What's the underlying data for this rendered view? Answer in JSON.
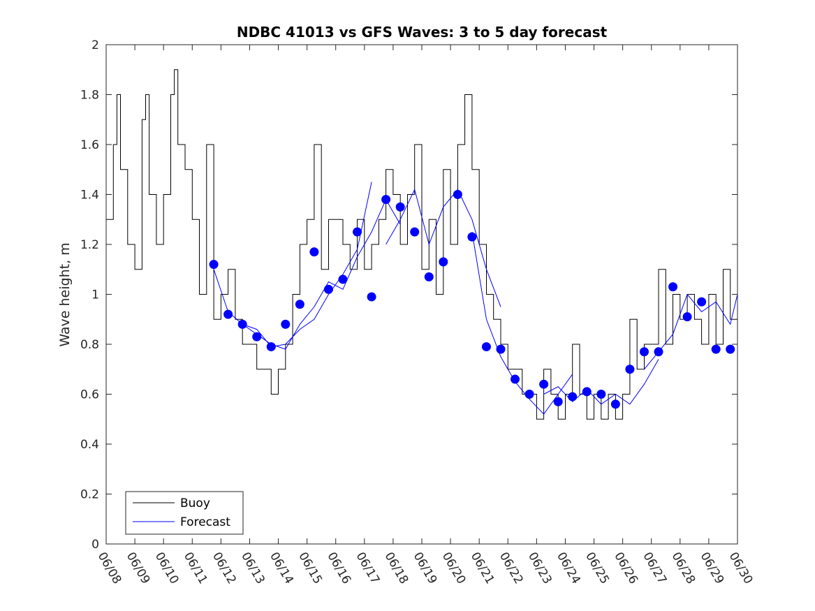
{
  "chart_data": {
    "type": "line",
    "title": "NDBC 41013 vs GFS Waves: 3 to 5 day forecast",
    "xlabel": "",
    "ylabel": "Wave height, m",
    "ylim": [
      0,
      2
    ],
    "xlim": [
      "06/08",
      "06/30"
    ],
    "grid": false,
    "legend_placement": "bottom-left",
    "x_tick_labels": [
      "06/08",
      "06/09",
      "06/10",
      "06/11",
      "06/12",
      "06/13",
      "06/14",
      "06/15",
      "06/16",
      "06/17",
      "06/18",
      "06/19",
      "06/20",
      "06/21",
      "06/22",
      "06/23",
      "06/24",
      "06/25",
      "06/26",
      "06/27",
      "06/28",
      "06/29",
      "06/30"
    ],
    "y_tick_labels": [
      "0",
      "0.2",
      "0.4",
      "0.6",
      "0.8",
      "1",
      "1.2",
      "1.4",
      "1.6",
      "1.8",
      "2"
    ],
    "series": [
      {
        "name": "Buoy",
        "color": "#000000",
        "style": "line",
        "x": [
          "06/08 00:00",
          "06/08 06:00",
          "06/08 09:00",
          "06/08 12:00",
          "06/08 18:00",
          "06/09 00:00",
          "06/09 06:00",
          "06/09 09:00",
          "06/09 12:00",
          "06/09 18:00",
          "06/10 00:00",
          "06/10 06:00",
          "06/10 09:00",
          "06/10 12:00",
          "06/10 18:00",
          "06/11 00:00",
          "06/11 06:00",
          "06/11 12:00",
          "06/11 18:00",
          "06/12 00:00",
          "06/12 06:00",
          "06/12 12:00",
          "06/12 18:00",
          "06/13 00:00",
          "06/13 06:00",
          "06/13 12:00",
          "06/13 18:00",
          "06/14 00:00",
          "06/14 06:00",
          "06/14 12:00",
          "06/14 18:00",
          "06/15 00:00",
          "06/15 06:00",
          "06/15 12:00",
          "06/15 18:00",
          "06/16 00:00",
          "06/16 06:00",
          "06/16 12:00",
          "06/16 18:00",
          "06/17 00:00",
          "06/17 06:00",
          "06/17 12:00",
          "06/17 18:00",
          "06/18 00:00",
          "06/18 06:00",
          "06/18 12:00",
          "06/18 18:00",
          "06/19 00:00",
          "06/19 06:00",
          "06/19 12:00",
          "06/19 18:00",
          "06/20 00:00",
          "06/20 06:00",
          "06/20 12:00",
          "06/20 18:00",
          "06/21 00:00",
          "06/21 06:00",
          "06/21 12:00",
          "06/21 18:00",
          "06/22 00:00",
          "06/22 06:00",
          "06/22 12:00",
          "06/22 18:00",
          "06/23 00:00",
          "06/23 06:00",
          "06/23 12:00",
          "06/23 18:00",
          "06/24 00:00",
          "06/24 06:00",
          "06/24 12:00",
          "06/24 18:00",
          "06/25 00:00",
          "06/25 06:00",
          "06/25 12:00",
          "06/25 18:00",
          "06/26 00:00",
          "06/26 06:00",
          "06/26 12:00",
          "06/26 18:00",
          "06/27 00:00",
          "06/27 06:00",
          "06/27 12:00",
          "06/27 18:00",
          "06/28 00:00",
          "06/28 06:00",
          "06/28 12:00",
          "06/28 18:00",
          "06/29 00:00",
          "06/29 06:00",
          "06/29 12:00",
          "06/29 18:00",
          "06/30 00:00"
        ],
        "values": [
          1.3,
          1.6,
          1.8,
          1.5,
          1.2,
          1.1,
          1.7,
          1.8,
          1.4,
          1.2,
          1.4,
          1.8,
          1.9,
          1.6,
          1.5,
          1.3,
          1.0,
          1.6,
          0.9,
          1.0,
          1.1,
          0.9,
          0.8,
          0.8,
          0.7,
          0.7,
          0.6,
          0.7,
          0.8,
          1.0,
          1.2,
          1.3,
          1.6,
          1.1,
          1.3,
          1.3,
          1.2,
          1.1,
          1.3,
          1.1,
          1.2,
          1.3,
          1.5,
          1.4,
          1.2,
          1.4,
          1.6,
          1.1,
          1.3,
          1.0,
          1.5,
          1.2,
          1.6,
          1.8,
          1.5,
          1.2,
          1.0,
          0.9,
          0.8,
          0.7,
          0.7,
          0.6,
          0.6,
          0.5,
          0.7,
          0.6,
          0.5,
          0.6,
          0.8,
          0.6,
          0.5,
          0.6,
          0.5,
          0.6,
          0.5,
          0.6,
          0.9,
          0.7,
          0.8,
          0.8,
          1.1,
          0.8,
          1.0,
          0.9,
          1.0,
          0.9,
          0.8,
          1.0,
          0.8,
          1.1,
          0.9,
          0.8
        ]
      },
      {
        "name": "Forecast",
        "color": "#0000ff",
        "style": "line",
        "runs": [
          {
            "x": [
              "06/11 18:00",
              "06/12 06:00",
              "06/12 18:00",
              "06/13 06:00",
              "06/13 18:00",
              "06/14 06:00",
              "06/14 18:00",
              "06/15 06:00",
              "06/15 18:00",
              "06/16 06:00",
              "06/16 18:00",
              "06/17 06:00"
            ],
            "values": [
              1.1,
              0.93,
              0.88,
              0.86,
              0.79,
              0.8,
              0.86,
              0.9,
              1.0,
              1.08,
              1.18,
              1.45
            ]
          },
          {
            "x": [
              "06/12 18:00",
              "06/13 06:00",
              "06/13 18:00",
              "06/14 06:00",
              "06/14 18:00",
              "06/15 06:00",
              "06/15 18:00",
              "06/16 06:00",
              "06/16 18:00",
              "06/17 06:00",
              "06/17 18:00",
              "06/18 06:00"
            ],
            "values": [
              0.88,
              0.84,
              0.8,
              0.78,
              0.88,
              0.95,
              1.05,
              1.02,
              1.15,
              1.25,
              1.38,
              1.28
            ]
          },
          {
            "x": [
              "06/17 18:00",
              "06/18 06:00",
              "06/18 18:00",
              "06/19 06:00",
              "06/19 18:00",
              "06/20 06:00",
              "06/20 18:00",
              "06/21 06:00",
              "06/21 18:00"
            ],
            "values": [
              1.2,
              1.3,
              1.42,
              1.2,
              1.35,
              1.42,
              1.3,
              1.1,
              0.95
            ]
          },
          {
            "x": [
              "06/20 18:00",
              "06/21 06:00",
              "06/21 18:00",
              "06/22 06:00",
              "06/22 18:00",
              "06/23 06:00",
              "06/23 18:00",
              "06/24 06:00"
            ],
            "values": [
              1.25,
              0.9,
              0.75,
              0.65,
              0.58,
              0.52,
              0.6,
              0.68
            ]
          },
          {
            "x": [
              "06/23 06:00",
              "06/23 18:00",
              "06/24 06:00",
              "06/24 18:00",
              "06/25 06:00",
              "06/25 18:00",
              "06/26 06:00",
              "06/26 18:00",
              "06/27 06:00"
            ],
            "values": [
              0.6,
              0.63,
              0.57,
              0.62,
              0.56,
              0.6,
              0.56,
              0.64,
              0.74
            ]
          },
          {
            "x": [
              "06/26 18:00",
              "06/27 06:00",
              "06/27 18:00",
              "06/28 06:00",
              "06/28 18:00",
              "06/29 06:00",
              "06/29 18:00",
              "06/30 00:00"
            ],
            "values": [
              0.7,
              0.77,
              0.84,
              1.0,
              0.93,
              0.97,
              0.88,
              1.0
            ]
          }
        ],
        "markers": {
          "x": [
            "06/11 18:00",
            "06/12 06:00",
            "06/12 18:00",
            "06/13 06:00",
            "06/13 18:00",
            "06/14 06:00",
            "06/14 18:00",
            "06/15 06:00",
            "06/15 18:00",
            "06/16 06:00",
            "06/16 18:00",
            "06/17 06:00",
            "06/17 18:00",
            "06/18 06:00",
            "06/18 18:00",
            "06/19 06:00",
            "06/19 18:00",
            "06/20 06:00",
            "06/20 18:00",
            "06/21 06:00",
            "06/21 18:00",
            "06/22 06:00",
            "06/22 18:00",
            "06/23 06:00",
            "06/23 18:00",
            "06/24 06:00",
            "06/24 18:00",
            "06/25 06:00",
            "06/25 18:00",
            "06/26 06:00",
            "06/26 18:00",
            "06/27 06:00",
            "06/27 18:00",
            "06/28 06:00",
            "06/28 18:00",
            "06/29 06:00",
            "06/29 18:00"
          ],
          "values": [
            1.12,
            0.92,
            0.88,
            0.83,
            0.79,
            0.88,
            0.96,
            1.17,
            1.02,
            1.06,
            1.25,
            0.99,
            1.38,
            1.35,
            1.25,
            1.07,
            1.13,
            1.4,
            1.23,
            0.79,
            0.78,
            0.66,
            0.6,
            0.64,
            0.57,
            0.59,
            0.61,
            0.6,
            0.56,
            0.7,
            0.77,
            0.77,
            1.03,
            0.91,
            0.97,
            0.78,
            0.78
          ]
        }
      }
    ],
    "legend": [
      {
        "label": "Buoy",
        "color": "#000000"
      },
      {
        "label": "Forecast",
        "color": "#0000ff"
      }
    ]
  }
}
